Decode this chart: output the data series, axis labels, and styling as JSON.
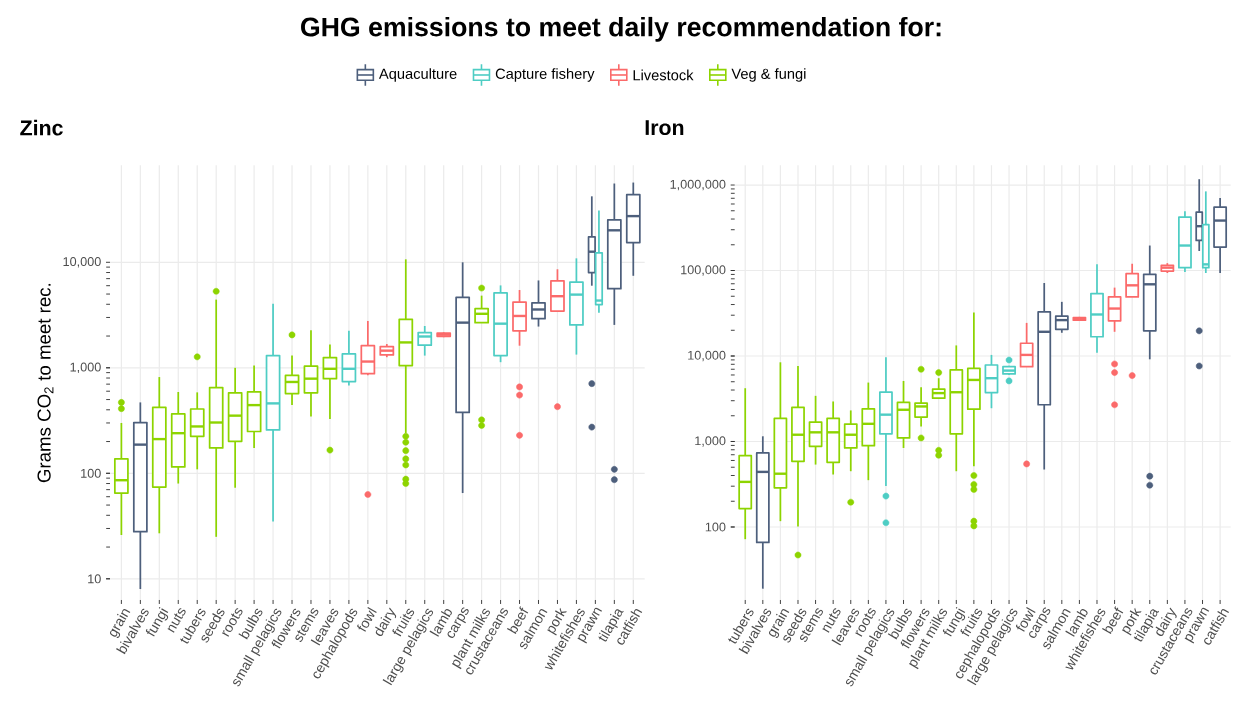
{
  "chart_data": [
    {
      "type": "box",
      "title": "GHG emissions to meet daily recommendation for:",
      "subtitle": "Zinc",
      "ylabel": "Grams CO$_{2}$ to meet rec.",
      "log": true,
      "grid": true,
      "legend": "top",
      "categories": [
        "grain",
        "bivalves",
        "fungi",
        "nuts",
        "tubers",
        "seeds",
        "roots",
        "bulbs",
        "small pelagics",
        "flowers",
        "stems",
        "leaves",
        "cephalopods",
        "fowl",
        "dairy",
        "fruits",
        "large pelagics",
        "lamb",
        "carps",
        "plant milks",
        "crustaceans",
        "beef",
        "salmon",
        "pork",
        "whitefishes",
        "prawn",
        "tilapia",
        "catfish"
      ],
      "ylim": [
        6.3,
        83000
      ],
      "yticks": [
        10,
        100,
        {
          "value": 1000,
          "label": "1,000"
        },
        {
          "value": 10000,
          "label": "10,000"
        }
      ],
      "series": [
        {
          "name": "Aquaculture",
          "color": "#4d5f7c",
          "boxes": [
            null,
            {
              "low": 8,
              "q1": 28,
              "median": 187,
              "q3": 303,
              "high": 470
            },
            null,
            null,
            null,
            null,
            null,
            null,
            null,
            null,
            null,
            null,
            null,
            null,
            null,
            null,
            null,
            null,
            {
              "low": 65,
              "q1": 378,
              "median": 2680,
              "q3": 4660,
              "high": 10000
            },
            null,
            null,
            null,
            {
              "low": 2460,
              "q1": 2920,
              "median": 3570,
              "q3": 4130,
              "high": 6730
            },
            null,
            null,
            {
              "low": 6000,
              "q1": 8000,
              "median": 12600,
              "q3": 17400,
              "high": 42200,
              "outliers": [
                708,
                274
              ]
            },
            {
              "low": 2550,
              "q1": 5620,
              "median": 20100,
              "q3": 25300,
              "high": 55800,
              "outliers": [
                109,
                87
              ]
            },
            {
              "low": 7450,
              "q1": 15400,
              "median": 27400,
              "q3": 43700,
              "high": 57000
            }
          ]
        },
        {
          "name": "Capture fishery",
          "color": "#4ecdc4",
          "boxes": [
            null,
            null,
            null,
            null,
            null,
            null,
            null,
            null,
            {
              "low": 35,
              "q1": 258,
              "median": 460,
              "q3": 1305,
              "high": 4040
            },
            null,
            null,
            null,
            {
              "low": 680,
              "q1": 740,
              "median": 979,
              "q3": 1352,
              "high": 2240
            },
            null,
            null,
            null,
            {
              "low": 1305,
              "q1": 1640,
              "median": 1980,
              "q3": 2160,
              "high": 2490
            },
            null,
            null,
            null,
            {
              "low": 1130,
              "q1": 1305,
              "median": 2620,
              "q3": 5120,
              "high": 6040
            },
            null,
            null,
            null,
            {
              "low": 1334,
              "q1": 2550,
              "median": 4940,
              "q3": 6490,
              "high": 10900
            },
            {
              "low": 3320,
              "q1": 3980,
              "median": 4340,
              "q3": 12300,
              "high": 30900
            },
            null,
            null
          ]
        },
        {
          "name": "Livestock",
          "color": "#fb6a6a",
          "boxes": [
            null,
            null,
            null,
            null,
            null,
            null,
            null,
            null,
            null,
            null,
            null,
            null,
            null,
            {
              "low": 850,
              "q1": 879,
              "median": 1146,
              "q3": 1622,
              "high": 2780,
              "outliers": [
                63
              ]
            },
            {
              "low": 1260,
              "q1": 1323,
              "median": 1454,
              "q3": 1590,
              "high": 1680
            },
            null,
            null,
            {
              "low": 1950,
              "q1": 1990,
              "median": 2060,
              "q3": 2130,
              "high": 2170
            },
            null,
            null,
            null,
            {
              "low": 1620,
              "q1": 2240,
              "median": 3100,
              "q3": 4190,
              "high": 5460,
              "outliers": [
                659,
                551,
                229
              ]
            },
            null,
            {
              "low": 3450,
              "q1": 3450,
              "median": 4770,
              "q3": 6680,
              "high": 8590,
              "outliers": [
                428
              ]
            },
            null,
            null,
            null,
            null
          ]
        },
        {
          "name": "Veg & fungi",
          "color": "#8dd400",
          "boxes": [
            {
              "low": 26,
              "q1": 65,
              "median": 86,
              "q3": 137,
              "high": 300,
              "outliers": [
                470,
                410
              ]
            },
            null,
            {
              "low": 27,
              "q1": 74,
              "median": 211,
              "q3": 422,
              "high": 817
            },
            {
              "low": 80,
              "q1": 115,
              "median": 240,
              "q3": 365,
              "high": 590
            },
            {
              "low": 109,
              "q1": 224,
              "median": 278,
              "q3": 407,
              "high": 585,
              "outliers": [
                1270
              ]
            },
            {
              "low": 25,
              "q1": 174,
              "median": 303,
              "q3": 649,
              "high": 4430,
              "outliers": [
                5310
              ]
            },
            {
              "low": 73,
              "q1": 201,
              "median": 352,
              "q3": 579,
              "high": 1000
            },
            {
              "low": 174,
              "q1": 249,
              "median": 443,
              "q3": 591,
              "high": 1050
            },
            null,
            {
              "low": 443,
              "q1": 570,
              "median": 734,
              "q3": 847,
              "high": 1305,
              "outliers": [
                2050
              ]
            },
            {
              "low": 345,
              "q1": 579,
              "median": 789,
              "q3": 1037,
              "high": 2270
            },
            {
              "low": 328,
              "q1": 789,
              "median": 979,
              "q3": 1250,
              "high": 1660,
              "outliers": [
                166
              ]
            },
            null,
            null,
            null,
            {
              "low": 240,
              "q1": 1050,
              "median": 1740,
              "q3": 2880,
              "high": 10670,
              "outliers": [
                224,
                197,
                164,
                137,
                120,
                88,
                80
              ]
            },
            null,
            null,
            null,
            {
              "low": 2680,
              "q1": 2680,
              "median": 3250,
              "q3": 3630,
              "high": 4830,
              "outliers": [
                5700,
                321,
                284
              ]
            },
            null,
            null,
            null,
            null,
            null,
            null,
            null,
            null
          ]
        }
      ]
    },
    {
      "type": "box",
      "subtitle": "Iron",
      "log": true,
      "grid": true,
      "categories": [
        "tubers",
        "bivalves",
        "grain",
        "seeds",
        "stems",
        "nuts",
        "leaves",
        "roots",
        "small pelagics",
        "bulbs",
        "flowers",
        "plant milks",
        "fungi",
        "fruits",
        "cephalopods",
        "large pelagics",
        "fowl",
        "carps",
        "salmon",
        "lamb",
        "whitefishes",
        "beef",
        "pork",
        "tilapia",
        "dairy",
        "crustaceans",
        "prawn",
        "catfish"
      ],
      "ylim": [
        14,
        1700000
      ],
      "yticks": [
        100,
        {
          "value": 1000,
          "label": "1,000"
        },
        {
          "value": 10000,
          "label": "10,000"
        },
        {
          "value": 100000,
          "label": "100,000"
        },
        {
          "value": 1000000,
          "label": "1,000,000"
        }
      ],
      "series": [
        {
          "color": "#4d5f7c",
          "boxes": [
            null,
            {
              "low": 19,
              "q1": 66,
              "median": 441,
              "q3": 735,
              "high": 1150
            },
            null,
            null,
            null,
            null,
            null,
            null,
            null,
            null,
            null,
            null,
            null,
            null,
            null,
            null,
            null,
            {
              "low": 470,
              "q1": 2690,
              "median": 19200,
              "q3": 32800,
              "high": 71400
            },
            {
              "low": 18700,
              "q1": 20500,
              "median": 26300,
              "q3": 29200,
              "high": 43000
            },
            null,
            null,
            null,
            null,
            {
              "low": 9150,
              "q1": 19700,
              "median": 69000,
              "q3": 90200,
              "high": 196000,
              "outliers": [
                393,
                308
              ]
            },
            null,
            null,
            {
              "low": 169000,
              "q1": 225000,
              "median": 330000,
              "q3": 481000,
              "high": 1170000,
              "outliers": [
                19700,
                7640
              ]
            },
            {
              "low": 93500,
              "q1": 188000,
              "median": 384000,
              "q3": 550000,
              "high": 706000
            }
          ]
        },
        {
          "color": "#4ecdc4",
          "boxes": [
            null,
            null,
            null,
            null,
            null,
            null,
            null,
            null,
            {
              "low": 301,
              "q1": 1230,
              "median": 2060,
              "q3": 3770,
              "high": 9640,
              "outliers": [
                230,
                112
              ]
            },
            null,
            null,
            null,
            null,
            null,
            {
              "low": 2450,
              "q1": 3740,
              "median": 5500,
              "q3": 7850,
              "high": 10300
            },
            {
              "low": 6000,
              "q1": 6170,
              "median": 6750,
              "q3": 7510,
              "high": 7700,
              "outliers": [
                8980,
                5110
              ]
            },
            null,
            null,
            null,
            null,
            {
              "low": 10900,
              "q1": 16800,
              "median": 30600,
              "q3": 53700,
              "high": 118000
            },
            null,
            null,
            null,
            null,
            {
              "low": 96100,
              "q1": 108000,
              "median": 196000,
              "q3": 420000,
              "high": 493000
            },
            {
              "low": 93500,
              "q1": 108000,
              "median": 118000,
              "q3": 345000,
              "high": 843000
            },
            null
          ]
        },
        {
          "color": "#fb6a6a",
          "boxes": [
            null,
            null,
            null,
            null,
            null,
            null,
            null,
            null,
            null,
            null,
            null,
            null,
            null,
            null,
            null,
            null,
            {
              "low": 7510,
              "q1": 7510,
              "median": 10300,
              "q3": 14100,
              "high": 24400,
              "outliers": [
                547
              ]
            },
            null,
            null,
            {
              "low": 25800,
              "q1": 26200,
              "median": 27200,
              "q3": 28200,
              "high": 28700
            },
            null,
            {
              "low": 19200,
              "q1": 25800,
              "median": 35900,
              "q3": 49100,
              "high": 63100,
              "outliers": [
                8070,
                6400,
                2690
              ]
            },
            {
              "low": 49100,
              "q1": 49100,
              "median": 67100,
              "q3": 91900,
              "high": 120000,
              "outliers": [
                5900
              ]
            },
            null,
            {
              "low": 93500,
              "q1": 98600,
              "median": 108000,
              "q3": 115000,
              "high": 122000
            },
            null,
            null,
            null
          ]
        },
        {
          "color": "#8dd400",
          "boxes": [
            {
              "low": 72,
              "q1": 164,
              "median": 337,
              "q3": 684,
              "high": 4200
            },
            null,
            {
              "low": 117,
              "q1": 287,
              "median": 420,
              "q3": 1860,
              "high": 8440
            },
            {
              "low": 101,
              "q1": 587,
              "median": 1200,
              "q3": 2500,
              "high": 7640,
              "outliers": [
                47
              ]
            },
            {
              "low": 537,
              "q1": 879,
              "median": 1280,
              "q3": 1690,
              "high": 3420
            },
            {
              "low": 411,
              "q1": 571,
              "median": 1280,
              "q3": 1860,
              "high": 2940
            },
            {
              "low": 449,
              "q1": 840,
              "median": 1200,
              "q3": 1600,
              "high": 2310,
              "outliers": [
                195
              ]
            },
            {
              "low": 353,
              "q1": 894,
              "median": 1610,
              "q3": 2410,
              "high": 4890
            },
            null,
            {
              "low": 840,
              "q1": 1100,
              "median": 2350,
              "q3": 2860,
              "high": 5110
            },
            {
              "low": 1500,
              "q1": 1930,
              "median": 2570,
              "q3": 2810,
              "high": 4310,
              "outliers": [
                7000,
                1100
              ]
            },
            {
              "low": 3210,
              "q1": 3210,
              "median": 3680,
              "q3": 4090,
              "high": 5500,
              "outliers": [
                6400,
                789,
                690
              ]
            },
            {
              "low": 449,
              "q1": 1230,
              "median": 3770,
              "q3": 6870,
              "high": 13300
            },
            {
              "low": 514,
              "q1": 2390,
              "median": 5250,
              "q3": 7180,
              "high": 32300,
              "outliers": [
                400,
                314,
                275,
                117,
                103
              ]
            },
            null,
            null,
            null,
            null,
            null,
            null,
            null,
            null,
            null,
            null,
            null,
            null,
            null,
            null
          ]
        }
      ]
    }
  ]
}
